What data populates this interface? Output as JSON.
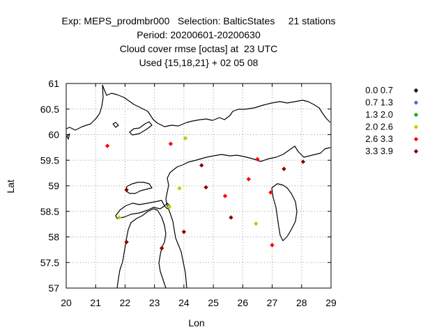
{
  "title": {
    "line1": "Exp: MEPS_prodmbr000   Selection: BalticStates     21 stations",
    "line2": "Period: 20200601-20200630",
    "line3": "Cloud cover rmse [octas] at  23 UTC",
    "line4": "Used {15,18,21} + 02 05 08"
  },
  "chart_data": {
    "type": "scatter",
    "title": "Cloud cover rmse [octas] at  23 UTC",
    "xlabel": "Lon",
    "ylabel": "Lat",
    "xlim": [
      20,
      29
    ],
    "ylim": [
      57,
      61
    ],
    "xticks": [
      20,
      21,
      22,
      23,
      24,
      25,
      26,
      27,
      28,
      29
    ],
    "yticks": [
      57,
      57.5,
      58,
      58.5,
      59,
      59.5,
      60,
      60.5,
      61
    ],
    "xtick_labels": [
      "20",
      "21",
      "22",
      "23",
      "24",
      "25",
      "26",
      "27",
      "28",
      "29"
    ],
    "ytick_labels": [
      "57",
      "57.5",
      "58",
      "58.5",
      "59",
      "59.5",
      "60",
      "60.5",
      "61"
    ],
    "grid": true,
    "legend": [
      {
        "label": "0.0 0.7",
        "color": "#000000"
      },
      {
        "label": "0.7 1.3",
        "color": "#3f6fe0"
      },
      {
        "label": "1.3 2.0",
        "color": "#10b010"
      },
      {
        "label": "2.0 2.6",
        "color": "#c8c800"
      },
      {
        "label": "2.6 3.3",
        "color": "#ff0000"
      },
      {
        "label": "3.3 3.9",
        "color": "#8b0000"
      }
    ],
    "points": [
      {
        "lon": 21.4,
        "lat": 59.78,
        "cls": 4
      },
      {
        "lon": 23.55,
        "lat": 59.82,
        "cls": 4
      },
      {
        "lon": 24.05,
        "lat": 59.93,
        "cls": 3
      },
      {
        "lon": 24.6,
        "lat": 59.4,
        "cls": 5
      },
      {
        "lon": 26.5,
        "lat": 59.52,
        "cls": 4
      },
      {
        "lon": 27.4,
        "lat": 59.33,
        "cls": 5
      },
      {
        "lon": 28.05,
        "lat": 59.47,
        "cls": 5
      },
      {
        "lon": 22.05,
        "lat": 58.92,
        "cls": 5
      },
      {
        "lon": 23.85,
        "lat": 58.95,
        "cls": 3
      },
      {
        "lon": 24.75,
        "lat": 58.97,
        "cls": 5
      },
      {
        "lon": 26.2,
        "lat": 59.13,
        "cls": 4
      },
      {
        "lon": 26.95,
        "lat": 58.87,
        "cls": 4
      },
      {
        "lon": 25.4,
        "lat": 58.8,
        "cls": 4
      },
      {
        "lon": 23.5,
        "lat": 58.58,
        "cls": 3
      },
      {
        "lon": 21.8,
        "lat": 58.38,
        "cls": 3
      },
      {
        "lon": 25.6,
        "lat": 58.38,
        "cls": 5
      },
      {
        "lon": 26.45,
        "lat": 58.26,
        "cls": 3
      },
      {
        "lon": 24.0,
        "lat": 58.1,
        "cls": 5
      },
      {
        "lon": 22.05,
        "lat": 57.9,
        "cls": 5
      },
      {
        "lon": 23.25,
        "lat": 57.78,
        "cls": 5
      },
      {
        "lon": 27.0,
        "lat": 57.84,
        "cls": 4
      }
    ]
  }
}
